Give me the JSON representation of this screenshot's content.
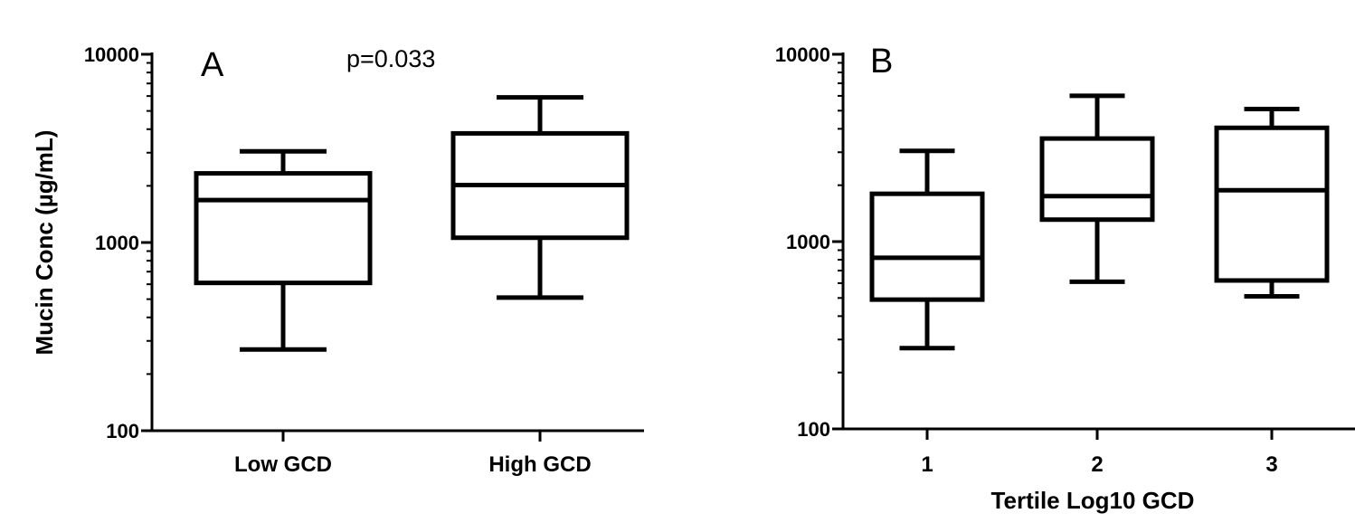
{
  "chart_data": [
    {
      "type": "box",
      "panel_label": "A",
      "annotation": "p=0.033",
      "ylabel": "Mucin  Conc (µg/mL)",
      "xlabel": "",
      "yscale": "log",
      "ylim": [
        100,
        10000
      ],
      "yticks": [
        "100",
        "1000",
        "10000"
      ],
      "categories": [
        "Low GCD",
        "High GCD"
      ],
      "boxes": [
        {
          "min": 270,
          "q1": 610,
          "median": 1680,
          "q3": 2330,
          "max": 3050
        },
        {
          "min": 510,
          "q1": 1060,
          "median": 2020,
          "q3": 3800,
          "max": 5900
        }
      ]
    },
    {
      "type": "box",
      "panel_label": "B",
      "annotation": "",
      "ylabel": "",
      "xlabel": "Tertile Log10 GCD",
      "yscale": "log",
      "ylim": [
        100,
        10000
      ],
      "yticks": [
        "100",
        "1000",
        "10000"
      ],
      "categories": [
        "1",
        "2",
        "3"
      ],
      "boxes": [
        {
          "min": 270,
          "q1": 490,
          "median": 820,
          "q3": 1800,
          "max": 3050
        },
        {
          "min": 610,
          "q1": 1310,
          "median": 1750,
          "q3": 3550,
          "max": 6000
        },
        {
          "min": 510,
          "q1": 620,
          "median": 1880,
          "q3": 4050,
          "max": 5100
        }
      ]
    }
  ]
}
